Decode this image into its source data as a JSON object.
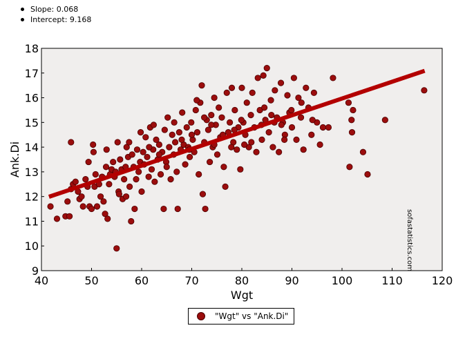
{
  "stats": {
    "slope": "Slope: 0.068",
    "intercept": "Intercept: 9.168"
  },
  "legend": {
    "label": "\"Wgt\" vs \"Ank.Di\""
  },
  "watermark": "sofastatistics.com",
  "colors": {
    "points": "#9b0d0d",
    "point_edge": "#4a0000",
    "regression": "#b30000",
    "plot_bg": "#f0eeed"
  },
  "chart_data": {
    "type": "scatter",
    "xlabel": "Wgt",
    "ylabel": "Ank.Di",
    "xlim": [
      40,
      120
    ],
    "ylim": [
      9,
      18
    ],
    "xticks": [
      40,
      50,
      60,
      70,
      80,
      90,
      100,
      110,
      120
    ],
    "yticks": [
      9,
      10,
      11,
      12,
      13,
      14,
      15,
      16,
      17,
      18
    ],
    "regression": {
      "slope": 0.068,
      "intercept": 9.168,
      "x_range": [
        41.5,
        116.5
      ]
    },
    "grid": false,
    "series": [
      {
        "name": "\"Wgt\" vs \"Ank.Di\"",
        "points": [
          [
            41.8,
            11.6
          ],
          [
            43.1,
            11.1
          ],
          [
            44.8,
            11.2
          ],
          [
            45.2,
            11.8
          ],
          [
            45.6,
            11.2
          ],
          [
            45.9,
            12.3
          ],
          [
            45.9,
            14.2
          ],
          [
            46.3,
            12.5
          ],
          [
            46.8,
            12.6
          ],
          [
            47.3,
            12.2
          ],
          [
            47.6,
            11.9
          ],
          [
            48.0,
            12.0
          ],
          [
            48.3,
            11.6
          ],
          [
            48.8,
            12.7
          ],
          [
            49.2,
            12.4
          ],
          [
            49.4,
            13.4
          ],
          [
            49.6,
            11.6
          ],
          [
            50.0,
            11.5
          ],
          [
            50.3,
            14.1
          ],
          [
            50.4,
            13.8
          ],
          [
            50.6,
            12.4
          ],
          [
            50.8,
            12.9
          ],
          [
            51.1,
            11.6
          ],
          [
            51.5,
            12.5
          ],
          [
            51.8,
            12.0
          ],
          [
            52.1,
            12.8
          ],
          [
            52.4,
            11.8
          ],
          [
            52.7,
            11.3
          ],
          [
            52.9,
            13.2
          ],
          [
            53.2,
            11.1
          ],
          [
            53.5,
            12.5
          ],
          [
            53.7,
            12.9
          ],
          [
            54.0,
            13.1
          ],
          [
            54.3,
            13.4
          ],
          [
            54.6,
            12.8
          ],
          [
            54.8,
            13.0
          ],
          [
            55.0,
            9.9
          ],
          [
            55.2,
            14.2
          ],
          [
            55.4,
            12.2
          ],
          [
            55.7,
            13.5
          ],
          [
            56.0,
            13.1
          ],
          [
            56.2,
            11.9
          ],
          [
            56.5,
            12.7
          ],
          [
            56.8,
            13.2
          ],
          [
            57.0,
            14.0
          ],
          [
            57.3,
            13.6
          ],
          [
            57.6,
            12.4
          ],
          [
            57.9,
            11.0
          ],
          [
            58.1,
            13.7
          ],
          [
            58.4,
            13.2
          ],
          [
            58.6,
            11.5
          ],
          [
            58.9,
            12.7
          ],
          [
            59.1,
            13.9
          ],
          [
            59.4,
            13.0
          ],
          [
            59.7,
            13.4
          ],
          [
            60.0,
            12.2
          ],
          [
            60.3,
            13.8
          ],
          [
            60.5,
            13.3
          ],
          [
            60.8,
            14.4
          ],
          [
            61.1,
            13.6
          ],
          [
            61.4,
            12.8
          ],
          [
            61.7,
            14.8
          ],
          [
            62.0,
            13.1
          ],
          [
            62.3,
            13.9
          ],
          [
            62.6,
            12.6
          ],
          [
            62.9,
            14.3
          ],
          [
            63.2,
            13.5
          ],
          [
            63.5,
            14.1
          ],
          [
            63.8,
            12.9
          ],
          [
            64.1,
            13.8
          ],
          [
            64.4,
            11.5
          ],
          [
            64.6,
            14.7
          ],
          [
            64.9,
            13.4
          ],
          [
            65.2,
            15.2
          ],
          [
            65.5,
            14.0
          ],
          [
            65.8,
            12.7
          ],
          [
            66.1,
            14.5
          ],
          [
            66.4,
            13.7
          ],
          [
            66.7,
            14.2
          ],
          [
            67.0,
            13.0
          ],
          [
            67.2,
            11.5
          ],
          [
            67.5,
            14.6
          ],
          [
            67.8,
            13.9
          ],
          [
            68.1,
            15.4
          ],
          [
            68.4,
            14.1
          ],
          [
            68.7,
            13.3
          ],
          [
            69.0,
            14.8
          ],
          [
            69.3,
            14.0
          ],
          [
            69.6,
            13.6
          ],
          [
            69.9,
            15.0
          ],
          [
            70.2,
            14.3
          ],
          [
            70.5,
            13.8
          ],
          [
            70.8,
            15.5
          ],
          [
            71.1,
            14.6
          ],
          [
            71.4,
            12.9
          ],
          [
            71.7,
            15.8
          ],
          [
            72.0,
            16.5
          ],
          [
            72.2,
            12.1
          ],
          [
            72.5,
            14.2
          ],
          [
            72.7,
            11.5
          ],
          [
            73.0,
            15.1
          ],
          [
            73.3,
            14.7
          ],
          [
            73.6,
            13.4
          ],
          [
            73.9,
            15.3
          ],
          [
            74.2,
            14.0
          ],
          [
            74.5,
            16.0
          ],
          [
            74.8,
            14.9
          ],
          [
            75.1,
            13.7
          ],
          [
            75.4,
            15.6
          ],
          [
            75.7,
            14.4
          ],
          [
            76.0,
            15.2
          ],
          [
            76.4,
            13.2
          ],
          [
            76.7,
            12.4
          ],
          [
            77.0,
            16.2
          ],
          [
            77.3,
            14.6
          ],
          [
            77.6,
            15.0
          ],
          [
            78.0,
            16.4
          ],
          [
            78.3,
            14.2
          ],
          [
            78.6,
            15.5
          ],
          [
            79.0,
            13.9
          ],
          [
            79.3,
            14.8
          ],
          [
            79.7,
            13.1
          ],
          [
            80.0,
            16.4
          ],
          [
            80.3,
            15.0
          ],
          [
            80.7,
            14.5
          ],
          [
            81.0,
            15.8
          ],
          [
            81.4,
            14.0
          ],
          [
            81.8,
            15.3
          ],
          [
            82.1,
            16.2
          ],
          [
            82.5,
            14.8
          ],
          [
            82.9,
            13.8
          ],
          [
            83.2,
            16.8
          ],
          [
            83.6,
            15.5
          ],
          [
            84.0,
            14.3
          ],
          [
            84.3,
            16.9
          ],
          [
            84.7,
            15.1
          ],
          [
            85.0,
            17.2
          ],
          [
            85.4,
            14.6
          ],
          [
            85.8,
            15.9
          ],
          [
            86.2,
            14.0
          ],
          [
            86.6,
            16.3
          ],
          [
            87.0,
            15.2
          ],
          [
            87.4,
            13.8
          ],
          [
            87.8,
            16.6
          ],
          [
            88.2,
            15.0
          ],
          [
            88.6,
            14.5
          ],
          [
            89.1,
            16.1
          ],
          [
            89.5,
            15.4
          ],
          [
            90.0,
            14.8
          ],
          [
            90.4,
            16.8
          ],
          [
            90.9,
            14.3
          ],
          [
            91.3,
            16.0
          ],
          [
            91.8,
            15.2
          ],
          [
            92.3,
            13.9
          ],
          [
            92.8,
            16.4
          ],
          [
            93.3,
            15.6
          ],
          [
            93.9,
            14.5
          ],
          [
            94.4,
            16.2
          ],
          [
            95.0,
            15.0
          ],
          [
            95.6,
            14.1
          ],
          [
            96.2,
            14.8
          ],
          [
            97.3,
            14.8
          ],
          [
            98.2,
            16.8
          ],
          [
            101.3,
            15.8
          ],
          [
            101.5,
            13.2
          ],
          [
            101.9,
            15.1
          ],
          [
            102.2,
            15.5
          ],
          [
            102.0,
            14.6
          ],
          [
            104.2,
            13.8
          ],
          [
            105.1,
            12.9
          ],
          [
            108.6,
            15.1
          ],
          [
            116.4,
            16.3
          ],
          [
            53.0,
            13.9
          ],
          [
            56.9,
            12.0
          ],
          [
            59.8,
            14.6
          ],
          [
            62.4,
            14.9
          ],
          [
            65.0,
            13.2
          ],
          [
            68.0,
            14.3
          ],
          [
            70.0,
            14.5
          ],
          [
            71.0,
            15.9
          ],
          [
            73.9,
            14.9
          ],
          [
            76.2,
            14.5
          ],
          [
            77.9,
            14.0
          ],
          [
            79.9,
            15.1
          ],
          [
            81.9,
            14.2
          ],
          [
            83.9,
            14.9
          ],
          [
            85.9,
            15.3
          ],
          [
            87.9,
            14.9
          ],
          [
            89.9,
            15.5
          ],
          [
            91.9,
            15.8
          ],
          [
            94.1,
            15.1
          ],
          [
            55.5,
            12.1
          ],
          [
            57.5,
            14.2
          ],
          [
            61.5,
            14.0
          ],
          [
            63.5,
            13.7
          ],
          [
            66.5,
            15.0
          ],
          [
            69.5,
            13.9
          ],
          [
            72.5,
            15.2
          ],
          [
            74.5,
            14.1
          ],
          [
            78.5,
            14.7
          ],
          [
            80.5,
            14.1
          ],
          [
            84.5,
            15.6
          ],
          [
            86.5,
            15.0
          ],
          [
            88.5,
            14.3
          ]
        ]
      }
    ]
  }
}
